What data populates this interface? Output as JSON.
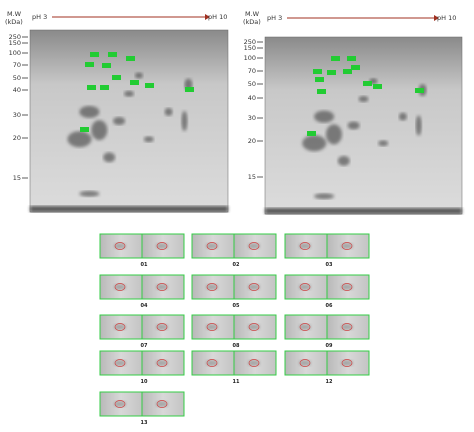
{
  "left_gel": {
    "mw_label": "M.W",
    "mw_unit": "(kDa)",
    "ph_start": "pH 3",
    "ph_end": "pH 10",
    "markers": [
      "250",
      "150",
      "100",
      "70",
      "50",
      "40",
      "30",
      "20",
      "15"
    ]
  },
  "right_gel": {
    "mw_label": "M.W",
    "mw_unit": "(kDa)",
    "ph_start": "pH 3",
    "ph_end": "pH 10",
    "markers": [
      "250",
      "150",
      "100",
      "70",
      "50",
      "40",
      "30",
      "20",
      "15"
    ]
  },
  "thumbnails": [
    "01",
    "02",
    "03",
    "04",
    "05",
    "06",
    "07",
    "08",
    "09",
    "10",
    "11",
    "12",
    "13"
  ]
}
